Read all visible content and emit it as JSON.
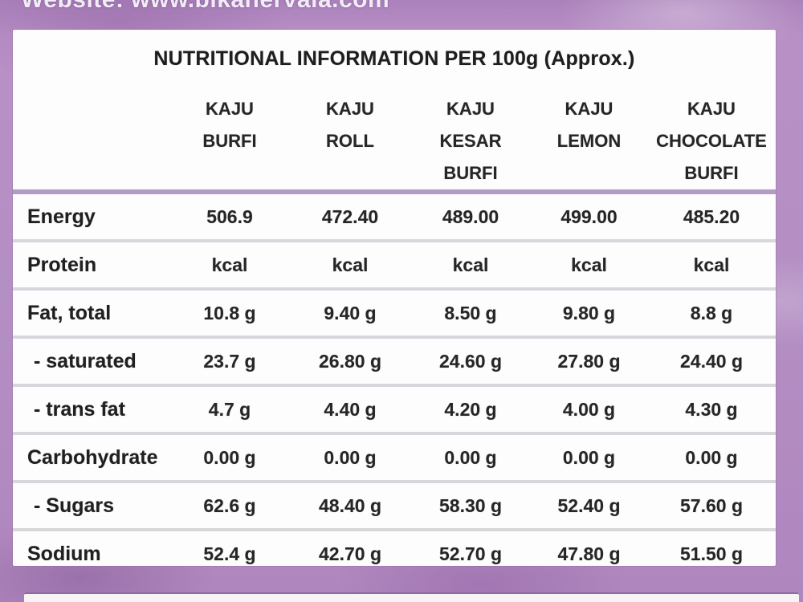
{
  "banner": {
    "website_text": "Website: www.bikanervala.com"
  },
  "table": {
    "title": "NUTRITIONAL INFORMATION PER 100g (Approx.)",
    "columns": [
      {
        "line1": "KAJU",
        "line2": "BURFI"
      },
      {
        "line1": "KAJU",
        "line2": "ROLL"
      },
      {
        "line1": "KAJU",
        "line2": "KESAR BURFI"
      },
      {
        "line1": "KAJU",
        "line2": "LEMON"
      },
      {
        "line1": "KAJU",
        "line2": "CHOCOLATE BURFI"
      }
    ],
    "rows": [
      {
        "label": "Energy",
        "values": [
          "506.9",
          "472.40",
          "489.00",
          "499.00",
          "485.20"
        ]
      },
      {
        "label": "Protein",
        "values": [
          "kcal",
          "kcal",
          "kcal",
          "kcal",
          "kcal"
        ]
      },
      {
        "label": "Fat, total",
        "values": [
          "10.8 g",
          "9.40 g",
          "8.50 g",
          "9.80 g",
          "8.8 g"
        ]
      },
      {
        "label": "- saturated",
        "values": [
          "23.7 g",
          "26.80 g",
          "24.60 g",
          "27.80 g",
          "24.40 g"
        ]
      },
      {
        "label": "- trans fat",
        "values": [
          "4.7 g",
          "4.40 g",
          "4.20 g",
          "4.00 g",
          "4.30 g"
        ]
      },
      {
        "label": "Carbohydrate",
        "values": [
          "0.00 g",
          "0.00 g",
          "0.00 g",
          "0.00 g",
          "0.00 g"
        ]
      },
      {
        "label": "- Sugars",
        "values": [
          "62.6 g",
          "48.40 g",
          "58.30 g",
          "52.40 g",
          "57.60 g"
        ]
      },
      {
        "label": "Sodium",
        "values": [
          "52.4 g",
          "42.70 g",
          "52.70 g",
          "47.80 g",
          "51.50 g"
        ]
      }
    ]
  },
  "colors": {
    "background_purple": "#b48fc3",
    "panel_white": "#fdfdfe",
    "header_rule_purple": "#b29bc7",
    "row_rule_gray": "#d9d6db",
    "text_dark": "#232323",
    "banner_text_white": "#f2ecf6"
  }
}
